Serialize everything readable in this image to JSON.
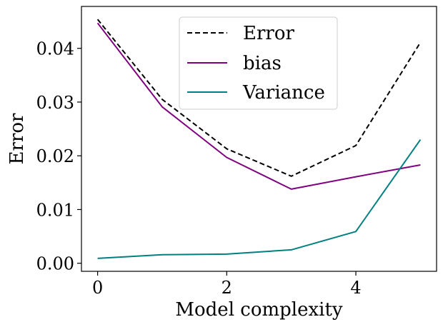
{
  "chart_data": {
    "type": "line",
    "title": "",
    "xlabel": "Model complexity",
    "ylabel": "Error",
    "x": [
      0,
      1,
      2,
      3,
      4,
      5
    ],
    "xlim": [
      -0.25,
      5.25
    ],
    "ylim": [
      -0.0015,
      0.0478
    ],
    "xticks": [
      0,
      2,
      4
    ],
    "xtick_labels": [
      "0",
      "2",
      "4"
    ],
    "yticks": [
      0.0,
      0.01,
      0.02,
      0.03,
      0.04
    ],
    "ytick_labels": [
      "0.00",
      "0.01",
      "0.02",
      "0.03",
      "0.04"
    ],
    "grid": false,
    "legend": {
      "position": "top-center"
    },
    "series": [
      {
        "name": "Error",
        "color": "#000000",
        "style": "dashed",
        "values": [
          0.0454,
          0.0305,
          0.0213,
          0.0162,
          0.0219,
          0.0411
        ]
      },
      {
        "name": "bias",
        "color": "#800080",
        "style": "solid",
        "values": [
          0.0447,
          0.0291,
          0.0197,
          0.0138,
          0.0161,
          0.0183
        ]
      },
      {
        "name": "Variance",
        "color": "#008080",
        "style": "solid",
        "values": [
          0.0009,
          0.0016,
          0.0017,
          0.0025,
          0.0059,
          0.023
        ]
      }
    ]
  }
}
